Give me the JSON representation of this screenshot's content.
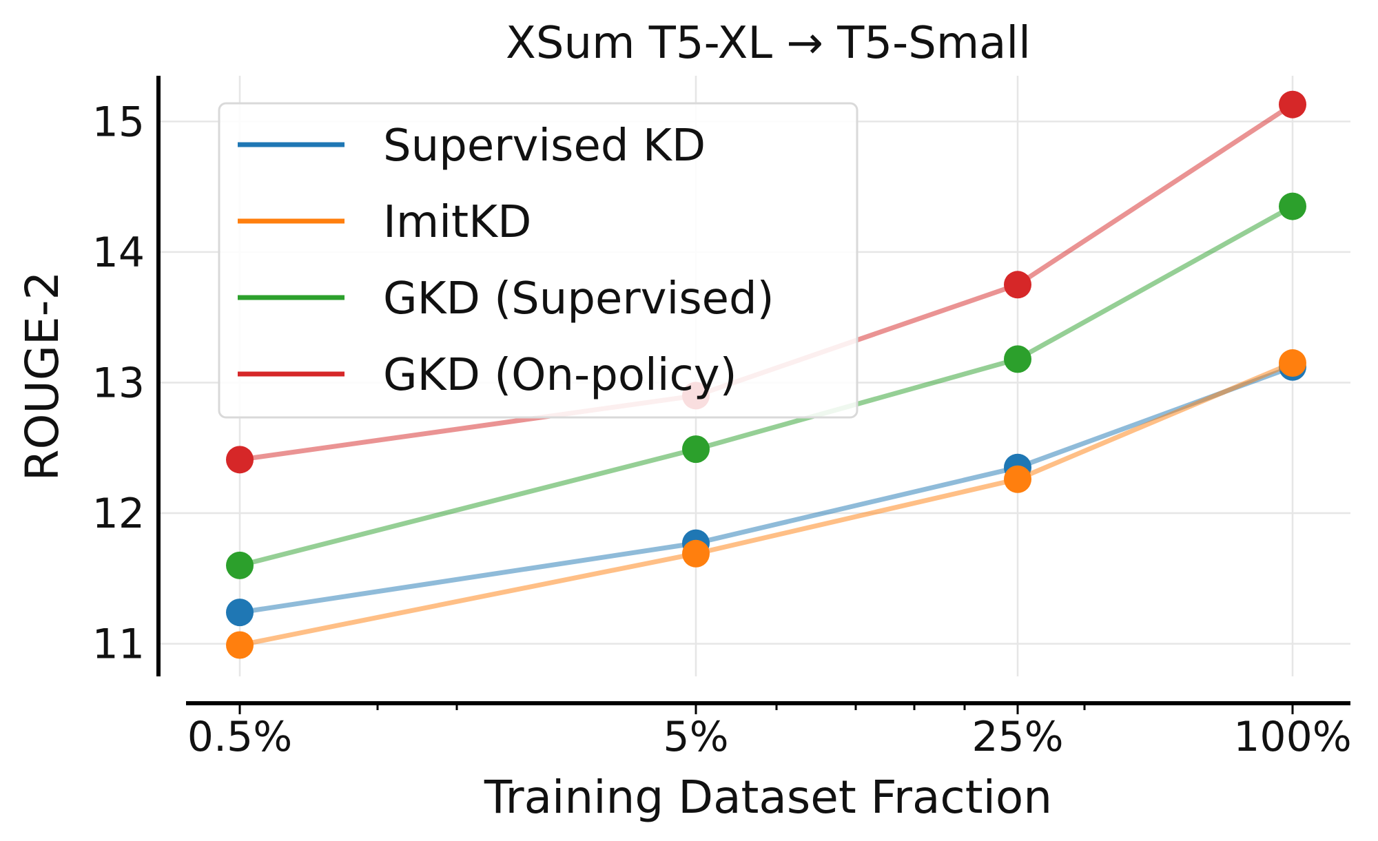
{
  "chart_data": {
    "type": "line",
    "title": "XSum T5-XL → T5-Small",
    "xlabel": "Training Dataset Fraction",
    "ylabel": "ROUGE-2",
    "x_scale": "log",
    "x": [
      0.5,
      5,
      25,
      100
    ],
    "x_tick_labels": [
      "0.5%",
      "5%",
      "25%",
      "100%"
    ],
    "y_ticks": [
      11,
      12,
      13,
      14,
      15
    ],
    "ylim": [
      10.75,
      15.35
    ],
    "grid": true,
    "legend_position": "top-left",
    "series": [
      {
        "name": "Supervised KD",
        "color": "#1f77b4",
        "values": [
          11.24,
          11.77,
          12.35,
          13.12
        ]
      },
      {
        "name": "ImitKD",
        "color": "#ff7f0e",
        "values": [
          10.99,
          11.69,
          12.26,
          13.15
        ]
      },
      {
        "name": "GKD (Supervised)",
        "color": "#2ca02c",
        "values": [
          11.6,
          12.49,
          13.18,
          14.35
        ]
      },
      {
        "name": "GKD (On-policy)",
        "color": "#d62728",
        "values": [
          12.41,
          12.9,
          13.75,
          15.13
        ]
      }
    ]
  }
}
